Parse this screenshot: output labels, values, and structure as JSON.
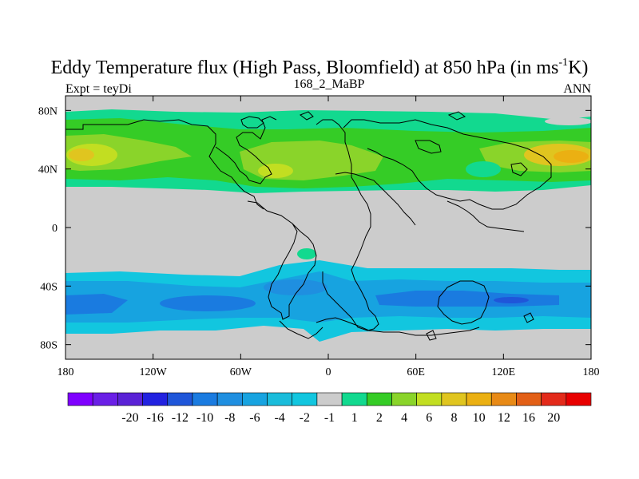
{
  "chart_data": {
    "type": "heatmap",
    "title": "Eddy Temperature flux (High Pass, Bloomfield) at 850 hPa (in ms",
    "title_sup": "-1",
    "title_end": "K)",
    "subtitle_left": "Expt = teyDi",
    "subtitle_center": "168_2_MaBP",
    "subtitle_right": "ANN",
    "x_ticks": [
      {
        "value": -180,
        "label": "180"
      },
      {
        "value": -120,
        "label": "120W"
      },
      {
        "value": -60,
        "label": "60W"
      },
      {
        "value": 0,
        "label": "0"
      },
      {
        "value": 60,
        "label": "60E"
      },
      {
        "value": 120,
        "label": "120E"
      },
      {
        "value": 180,
        "label": "180"
      }
    ],
    "y_ticks": [
      {
        "value": 80,
        "label": "80N"
      },
      {
        "value": 40,
        "label": "40N"
      },
      {
        "value": 0,
        "label": "0"
      },
      {
        "value": -40,
        "label": "40S"
      },
      {
        "value": -80,
        "label": "80S"
      }
    ],
    "xlim": [
      -180,
      180
    ],
    "ylim": [
      -90,
      90
    ],
    "colorbar": {
      "colors": [
        "#7f00ff",
        "#6a1fe6",
        "#5a22d6",
        "#2222e0",
        "#1f56d9",
        "#1a7be0",
        "#1f8fe0",
        "#17a3e0",
        "#1abcdb",
        "#12c6df",
        "#cccccc",
        "#12d98f",
        "#35cc26",
        "#8ad42a",
        "#c2de21",
        "#e0c51f",
        "#ebb012",
        "#e88a16",
        "#e25f16",
        "#e32a1a",
        "#e80000"
      ],
      "labels": [
        "-20",
        "-16",
        "-12",
        "-10",
        "-8",
        "-6",
        "-4",
        "-2",
        "-1",
        "1",
        "2",
        "4",
        "6",
        "8",
        "10",
        "12",
        "16",
        "20"
      ]
    },
    "bands": [
      {
        "lat": [
          22,
          84
        ],
        "level": "2"
      },
      {
        "lat": [
          26,
          70
        ],
        "level": "4"
      },
      {
        "lat": [
          36,
          62
        ],
        "level": "6"
      },
      {
        "lat": [
          -30,
          -82
        ],
        "level": "-4"
      },
      {
        "lat": [
          -38,
          -72
        ],
        "level": "-6"
      }
    ],
    "features": [
      {
        "name": "pacific-north-max",
        "center": [
          -170,
          48
        ],
        "value": 8
      },
      {
        "name": "pacific-north-core",
        "center": [
          175,
          48
        ],
        "value": 12
      },
      {
        "name": "atlantic-europe-max",
        "center": [
          -15,
          46
        ],
        "value": 6
      },
      {
        "name": "tropical-atlantic-spot",
        "center": [
          -5,
          -17
        ],
        "value": 2
      },
      {
        "name": "indian-ocean-min",
        "center": [
          90,
          -55
        ],
        "value": -8
      }
    ]
  }
}
